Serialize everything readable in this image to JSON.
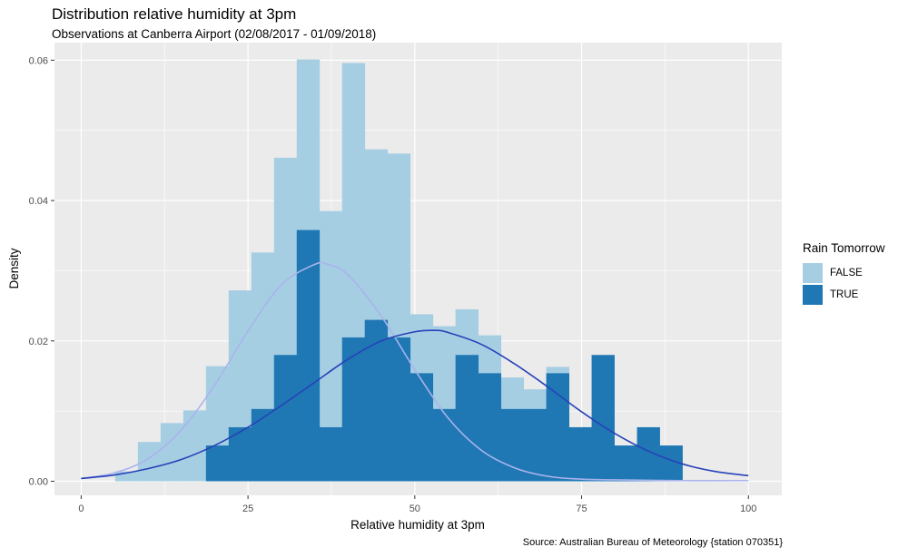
{
  "chart_data": {
    "type": "bar",
    "title": "Distribution relative humidity at 3pm",
    "subtitle": "Observations at Canberra Airport (02/08/2017 - 01/09/2018)",
    "caption": "Source: Australian Bureau of Meteorology {station 070351}",
    "xlabel": "Relative humidity at 3pm",
    "ylabel": "Density",
    "xlim": [
      -4,
      105
    ],
    "ylim": [
      -0.002,
      0.0625
    ],
    "xticks": [
      0,
      25,
      50,
      75,
      100
    ],
    "xtick_labels": [
      "0",
      "25",
      "50",
      "75",
      "100"
    ],
    "yticks": [
      0.0,
      0.02,
      0.04,
      0.06
    ],
    "ytick_labels": [
      "0.00",
      "0.02",
      "0.04",
      "0.06"
    ],
    "grid": true,
    "panel_background": "#ebebeb",
    "grid_color": "#ffffff",
    "legend": {
      "title": "Rain Tomorrow",
      "position": "right",
      "items": [
        {
          "label": "FALSE",
          "color": "#a6cee3"
        },
        {
          "label": "TRUE",
          "color": "#1f78b4"
        }
      ]
    },
    "series": [
      {
        "name": "FALSE",
        "color": "#a6cee3",
        "bin_width": 3.4,
        "bins": [
          {
            "x0": 5.1,
            "value": 0.0014
          },
          {
            "x0": 8.5,
            "value": 0.0056
          },
          {
            "x0": 11.9,
            "value": 0.0083
          },
          {
            "x0": 15.3,
            "value": 0.0101
          },
          {
            "x0": 18.7,
            "value": 0.0164
          },
          {
            "x0": 22.1,
            "value": 0.0272
          },
          {
            "x0": 25.5,
            "value": 0.0326
          },
          {
            "x0": 28.9,
            "value": 0.0461
          },
          {
            "x0": 32.3,
            "value": 0.0601
          },
          {
            "x0": 35.7,
            "value": 0.0385
          },
          {
            "x0": 39.1,
            "value": 0.0596
          },
          {
            "x0": 42.5,
            "value": 0.0473
          },
          {
            "x0": 45.9,
            "value": 0.0467
          },
          {
            "x0": 49.3,
            "value": 0.0238
          },
          {
            "x0": 52.7,
            "value": 0.0221
          },
          {
            "x0": 56.1,
            "value": 0.0245
          },
          {
            "x0": 59.5,
            "value": 0.0208
          },
          {
            "x0": 62.9,
            "value": 0.0148
          },
          {
            "x0": 66.3,
            "value": 0.0131
          },
          {
            "x0": 69.7,
            "value": 0.0163
          },
          {
            "x0": 73.1,
            "value": 0.0077
          },
          {
            "x0": 76.5,
            "value": 0.0022
          }
        ]
      },
      {
        "name": "TRUE",
        "color": "#1f78b4",
        "bin_width": 3.4,
        "bins": [
          {
            "x0": 18.7,
            "value": 0.0051
          },
          {
            "x0": 22.1,
            "value": 0.0077
          },
          {
            "x0": 25.5,
            "value": 0.0103
          },
          {
            "x0": 28.9,
            "value": 0.018
          },
          {
            "x0": 32.3,
            "value": 0.0358
          },
          {
            "x0": 35.7,
            "value": 0.0077
          },
          {
            "x0": 39.1,
            "value": 0.0205
          },
          {
            "x0": 42.5,
            "value": 0.023
          },
          {
            "x0": 45.9,
            "value": 0.0205
          },
          {
            "x0": 49.3,
            "value": 0.0154
          },
          {
            "x0": 52.7,
            "value": 0.0103
          },
          {
            "x0": 56.1,
            "value": 0.018
          },
          {
            "x0": 59.5,
            "value": 0.0154
          },
          {
            "x0": 62.9,
            "value": 0.0103
          },
          {
            "x0": 66.3,
            "value": 0.0103
          },
          {
            "x0": 69.7,
            "value": 0.0154
          },
          {
            "x0": 73.1,
            "value": 0.0077
          },
          {
            "x0": 76.5,
            "value": 0.018
          },
          {
            "x0": 79.9,
            "value": 0.0051
          },
          {
            "x0": 83.3,
            "value": 0.0077
          },
          {
            "x0": 86.7,
            "value": 0.0051
          }
        ]
      }
    ],
    "curves": [
      {
        "name": "FALSE",
        "color": "#aab3ec",
        "x": [
          0,
          5,
          10,
          15,
          20,
          25,
          30,
          35,
          37,
          40,
          45,
          50,
          55,
          60,
          65,
          70,
          75,
          80,
          90,
          100
        ],
        "y": [
          0.0004,
          0.0012,
          0.0032,
          0.0073,
          0.0137,
          0.0214,
          0.028,
          0.0309,
          0.0309,
          0.0294,
          0.0235,
          0.0159,
          0.009,
          0.0044,
          0.0019,
          0.0007,
          0.0003,
          0.0002,
          0.0001,
          0.0001
        ]
      },
      {
        "name": "TRUE",
        "color": "#2642b8",
        "x": [
          0,
          5,
          10,
          15,
          20,
          25,
          30,
          35,
          40,
          45,
          50,
          53,
          55,
          60,
          65,
          70,
          75,
          80,
          85,
          90,
          95,
          100
        ],
        "y": [
          0.0004,
          0.0009,
          0.0018,
          0.0031,
          0.0051,
          0.0077,
          0.0108,
          0.0141,
          0.0174,
          0.02,
          0.0213,
          0.0215,
          0.0212,
          0.0195,
          0.0167,
          0.0134,
          0.0099,
          0.0068,
          0.0043,
          0.0025,
          0.0014,
          0.0008
        ]
      }
    ]
  }
}
